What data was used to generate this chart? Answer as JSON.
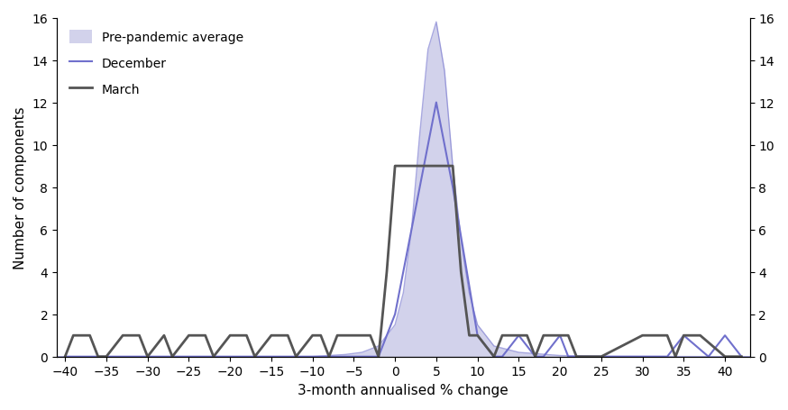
{
  "xlim": [
    -41,
    43
  ],
  "ylim": [
    0,
    16
  ],
  "xticks": [
    -40,
    -35,
    -30,
    -25,
    -20,
    -15,
    -10,
    -5,
    0,
    5,
    10,
    15,
    20,
    25,
    30,
    35,
    40
  ],
  "yticks": [
    0,
    2,
    4,
    6,
    8,
    10,
    12,
    14,
    16
  ],
  "xlabel": "3-month annualised % change",
  "ylabel": "Number of components",
  "fill_color": "#8080c8",
  "fill_alpha": 0.35,
  "december_color": "#7070cc",
  "march_color": "#555555",
  "prepandemic_x": [
    -42,
    -10,
    -8,
    -6,
    -4,
    -2,
    0,
    1,
    2,
    3,
    4,
    5,
    6,
    7,
    8,
    9,
    10,
    12,
    15,
    20,
    25,
    44
  ],
  "prepandemic_y": [
    0,
    0,
    0.05,
    0.1,
    0.2,
    0.5,
    1.5,
    3.0,
    6.0,
    10.5,
    14.5,
    15.8,
    13.5,
    9.0,
    5.5,
    3.0,
    1.5,
    0.5,
    0.2,
    0.05,
    0.01,
    0
  ],
  "december_x": [
    -40,
    -37,
    -35,
    -32,
    -30,
    -28,
    -27,
    -25,
    -23,
    -20,
    -18,
    -17,
    -15,
    -13,
    -12,
    -10,
    -8,
    -7,
    -5,
    -4,
    -3,
    -2,
    0,
    2,
    5,
    7,
    10,
    12,
    13,
    15,
    17,
    18,
    20,
    21,
    25,
    30,
    33,
    35,
    38,
    40,
    42
  ],
  "december_y": [
    0,
    0,
    0,
    0,
    0,
    0,
    0,
    0,
    0,
    0,
    0,
    0,
    0,
    0,
    0,
    0,
    0,
    0,
    0,
    0,
    0,
    0,
    2,
    6,
    12,
    8,
    1,
    0,
    0,
    1,
    0,
    0,
    1,
    0,
    0,
    0,
    0,
    1,
    0,
    1,
    0
  ],
  "march_x": [
    -40,
    -39,
    -37,
    -36,
    -35,
    -33,
    -31,
    -30,
    -28,
    -27,
    -25,
    -23,
    -22,
    -20,
    -18,
    -17,
    -15,
    -14,
    -13,
    -12,
    -10,
    -9,
    -8,
    -7,
    -5,
    -4,
    -3,
    -2,
    -1,
    0,
    2,
    5,
    7,
    8,
    9,
    10,
    12,
    13,
    15,
    16,
    17,
    18,
    20,
    21,
    22,
    25,
    30,
    31,
    33,
    34,
    35,
    37,
    40,
    42
  ],
  "march_y": [
    0,
    1,
    1,
    0,
    0,
    1,
    1,
    0,
    1,
    0,
    1,
    1,
    0,
    1,
    1,
    0,
    1,
    1,
    1,
    0,
    1,
    1,
    0,
    1,
    1,
    1,
    1,
    0,
    4,
    9,
    9,
    9,
    9,
    4,
    1,
    1,
    0,
    1,
    1,
    1,
    0,
    1,
    1,
    1,
    0,
    0,
    1,
    1,
    1,
    0,
    1,
    1,
    0,
    0
  ]
}
